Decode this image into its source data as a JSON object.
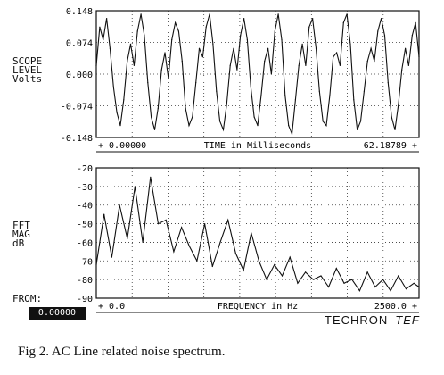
{
  "chart_data": [
    {
      "type": "line",
      "title": "",
      "ylabel": "SCOPE\nLEVEL\nVolts",
      "xlabel": "TIME in Milliseconds",
      "x_start_label": "+ 0.00000",
      "x_end_label": "62.18789 +",
      "xlim": [
        0,
        62.18789
      ],
      "ylim": [
        -0.148,
        0.148
      ],
      "yticks": [
        "0.148",
        "0.074",
        "0.000",
        "-0.074",
        "-0.148"
      ],
      "grid": true,
      "series": [
        {
          "values": [
            0.02,
            0.11,
            0.08,
            0.13,
            0.06,
            -0.03,
            -0.09,
            -0.12,
            -0.06,
            0.03,
            0.07,
            0.02,
            0.1,
            0.14,
            0.09,
            -0.02,
            -0.1,
            -0.13,
            -0.08,
            0.01,
            0.05,
            -0.01,
            0.08,
            0.12,
            0.1,
            0.03,
            -0.08,
            -0.12,
            -0.1,
            -0.02,
            0.06,
            0.04,
            0.11,
            0.14,
            0.07,
            -0.04,
            -0.11,
            -0.13,
            -0.07,
            0.02,
            0.06,
            0.01,
            0.09,
            0.13,
            0.08,
            -0.03,
            -0.1,
            -0.12,
            -0.05,
            0.03,
            0.06,
            0.0,
            0.1,
            0.14,
            0.08,
            -0.05,
            -0.12,
            -0.14,
            -0.06,
            0.02,
            0.07,
            0.02,
            0.11,
            0.13,
            0.06,
            -0.04,
            -0.11,
            -0.12,
            -0.05,
            0.04,
            0.05,
            0.02,
            0.12,
            0.14,
            0.07,
            -0.06,
            -0.13,
            -0.11,
            -0.04,
            0.03,
            0.06,
            0.03,
            0.1,
            0.13,
            0.09,
            -0.02,
            -0.1,
            -0.13,
            -0.07,
            0.01,
            0.06,
            0.02,
            0.09,
            0.12,
            0.04
          ]
        }
      ]
    },
    {
      "type": "line",
      "title": "",
      "ylabel": "FFT\nMAG\ndB",
      "xlabel": "FREQUENCY in Hz",
      "x_start_label": "+ 0.0",
      "x_end_label": "2500.0 +",
      "xlim": [
        0,
        2500
      ],
      "ylim": [
        -90,
        -20
      ],
      "yticks": [
        "-20",
        "-30",
        "-40",
        "-50",
        "-60",
        "-70",
        "-80",
        "-90"
      ],
      "grid": true,
      "series": [
        {
          "x": [
            0,
            60,
            120,
            180,
            240,
            300,
            360,
            420,
            480,
            540,
            600,
            660,
            720,
            780,
            840,
            900,
            960,
            1020,
            1080,
            1140,
            1200,
            1260,
            1320,
            1380,
            1440,
            1500,
            1560,
            1620,
            1680,
            1740,
            1800,
            1860,
            1920,
            1980,
            2040,
            2100,
            2160,
            2220,
            2280,
            2340,
            2400,
            2460,
            2500
          ],
          "values": [
            -72,
            -45,
            -68,
            -40,
            -58,
            -30,
            -60,
            -25,
            -50,
            -48,
            -65,
            -52,
            -62,
            -70,
            -50,
            -73,
            -60,
            -48,
            -66,
            -75,
            -55,
            -70,
            -80,
            -72,
            -78,
            -68,
            -82,
            -76,
            -80,
            -78,
            -84,
            -74,
            -82,
            -80,
            -86,
            -76,
            -84,
            -80,
            -86,
            -78,
            -85,
            -82,
            -84
          ]
        }
      ]
    }
  ],
  "labels": {
    "from": "FROM:",
    "from_value": "0.00000",
    "brand": "TECHRON",
    "brand_mark": "TEF",
    "caption": "Fig 2. AC Line related noise spectrum."
  }
}
